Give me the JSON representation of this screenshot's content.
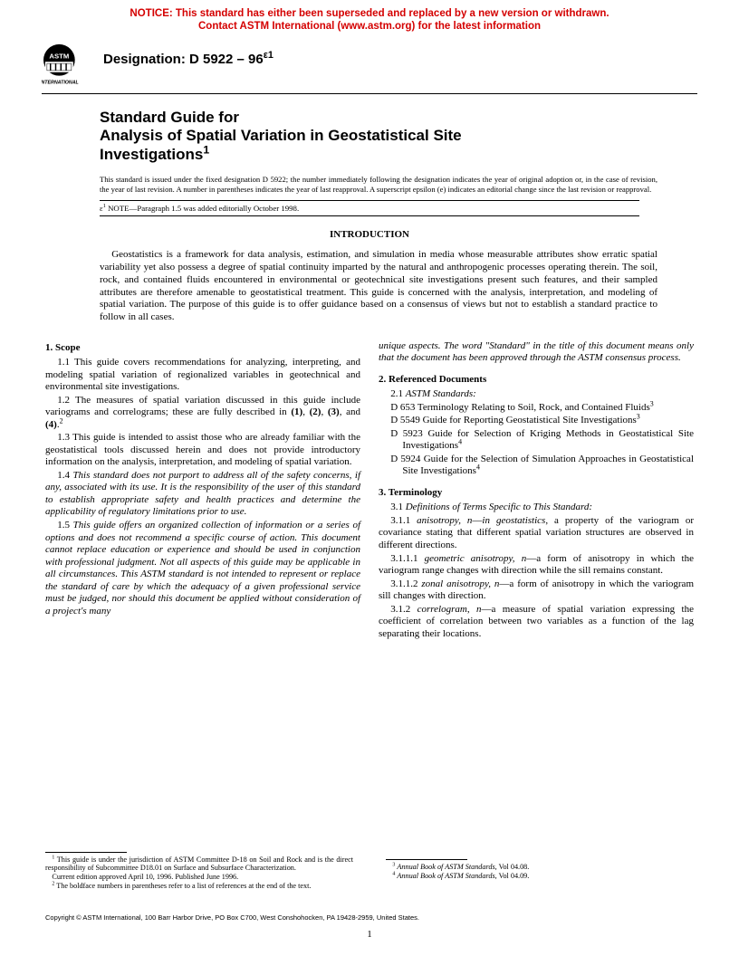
{
  "notice": {
    "line1": "NOTICE: This standard has either been superseded and replaced by a new version or withdrawn.",
    "line2": "Contact ASTM International (www.astm.org) for the latest information"
  },
  "logo": {
    "label": "INTERNATIONAL"
  },
  "designation": {
    "prefix": "Designation: D 5922 – 96",
    "eps": "e1"
  },
  "title": {
    "line1": "Standard Guide for",
    "line2": "Analysis of Spatial Variation in Geostatistical Site",
    "line3": "Investigations"
  },
  "issuance": "This standard is issued under the fixed designation D 5922; the number immediately following the designation indicates the year of original adoption or, in the case of revision, the year of last revision. A number in parentheses indicates the year of last reapproval. A superscript epsilon (e) indicates an editorial change since the last revision or reapproval.",
  "epsnote": {
    "prefix": "e",
    "sup": "1",
    "label": " NOTE",
    "text": "—Paragraph 1.5 was added editorially October 1998."
  },
  "intro": {
    "head": "INTRODUCTION",
    "body": "Geostatistics is a framework for data analysis, estimation, and simulation in media whose measurable attributes show erratic spatial variability yet also possess a degree of spatial continuity imparted by the natural and anthropogenic processes operating therein. The soil, rock, and contained fluids encountered in environmental or geotechnical site investigations present such features, and their sampled attributes are therefore amenable to geostatistical treatment. This guide is concerned with the analysis, interpretation, and modeling of spatial variation. The purpose of this guide is to offer guidance based on a consensus of views but not to establish a standard practice to follow in all cases."
  },
  "scope": {
    "head": "1. Scope",
    "p11": "1.1 This guide covers recommendations for analyzing, interpreting, and modeling spatial variation of regionalized variables in geotechnical and environmental site investigations.",
    "p12a": "1.2 The measures of spatial variation discussed in this guide include variograms and correlograms; these are fully described in ",
    "p12b": "(1)",
    "p12c": ", ",
    "p12d": "(2)",
    "p12e": ", ",
    "p12f": "(3)",
    "p12g": ", and ",
    "p12h": "(4)",
    "p12i": ".",
    "p13": "1.3 This guide is intended to assist those who are already familiar with the geostatistical tools discussed herein and does not provide introductory information on the analysis, interpretation, and modeling of spatial variation.",
    "p14": "1.4 This standard does not purport to address all of the safety concerns, if any, associated with its use. It is the responsibility of the user of this standard to establish appropriate safety and health practices and determine the applicability of regulatory limitations prior to use.",
    "p15": "1.5 This guide offers an organized collection of information or a series of options and does not recommend a specific course of action. This document cannot replace education or experience and should be used in conjunction with professional judgment. Not all aspects of this guide may be applicable in all circumstances. This ASTM standard is not intended to represent or replace the standard of care by which the adequacy of a given professional service must be judged, nor should this document be applied without consideration of a project's many",
    "p15cont": "unique aspects. The word \"Standard\" in the title of this document means only that the document has been approved through the ASTM consensus process."
  },
  "refs": {
    "head": "2. Referenced Documents",
    "sub": "2.1 ",
    "subital": "ASTM Standards:",
    "items": [
      {
        "id": "D 653",
        "text": " Terminology Relating to Soil, Rock, and Contained Fluids",
        "sup": "3"
      },
      {
        "id": "D 5549",
        "text": " Guide for Reporting Geostatistical Site Investigations",
        "sup": "3"
      },
      {
        "id": "D 5923",
        "text": " Guide for Selection of Kriging Methods in Geostatistical Site Investigations",
        "sup": "4"
      },
      {
        "id": "D 5924",
        "text": " Guide for the Selection of Simulation Approaches in Geostatistical Site Investigations",
        "sup": "4"
      }
    ]
  },
  "term": {
    "head": "3. Terminology",
    "p31": "3.1 ",
    "p31ital": "Definitions of Terms Specific to This Standard:",
    "p311a": "3.1.1 ",
    "p311b": "anisotropy, n",
    "p311c": "—",
    "p311d": "in geostatistics",
    "p311e": ", a property of the variogram or covariance stating that different spatial variation structures are observed in different directions.",
    "p3111a": "3.1.1.1 ",
    "p3111b": "geometric anisotropy, n",
    "p3111c": "—a form of anisotropy in which the variogram range changes with direction while the sill remains constant.",
    "p3112a": "3.1.1.2 ",
    "p3112b": "zonal anisotropy, n",
    "p3112c": "—a form of anisotropy in which the variogram sill changes with direction.",
    "p312a": "3.1.2 ",
    "p312b": "correlogram",
    "p312c": ", ",
    "p312d": "n",
    "p312e": "—a measure of spatial variation expressing the coefficient of correlation between two variables as a function of the lag separating their locations."
  },
  "footnotes": {
    "f1": " This guide is under the jurisdiction of ASTM Committee D-18 on Soil and Rock and is the direct responsibility of Subcommittee D18.01 on Surface and Subsurface Characterization.",
    "f1b": "Current edition approved April 10, 1996. Published June 1996.",
    "f2": " The boldface numbers in parentheses refer to a list of references at the end of the text.",
    "f3": "Annual Book of ASTM Standards",
    "f3vol": ", Vol 04.08.",
    "f4": "Annual Book of ASTM Standards",
    "f4vol": ", Vol 04.09."
  },
  "copyright": "Copyright © ASTM International, 100 Barr Harbor Drive, PO Box C700, West Conshohocken, PA 19428-2959, United States.",
  "pagenum": "1"
}
